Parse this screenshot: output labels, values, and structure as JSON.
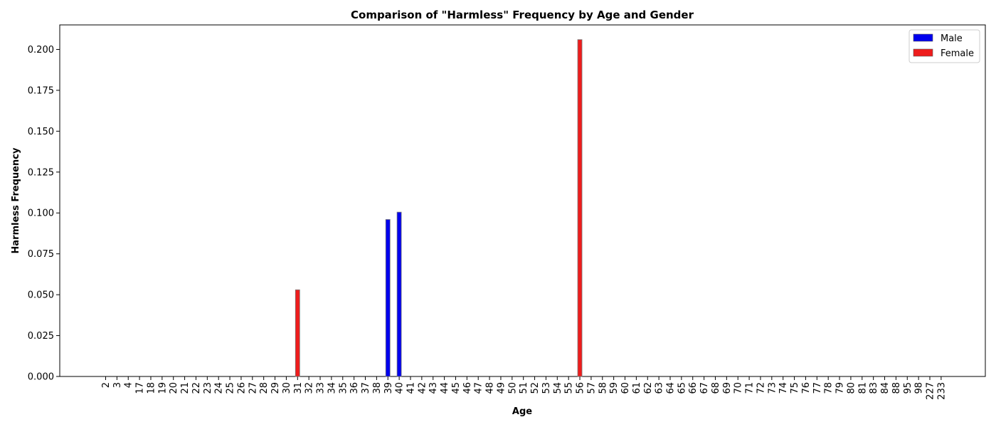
{
  "chart_data": {
    "type": "bar",
    "title": "Comparison of \"Harmless\" Frequency by Age and Gender",
    "xlabel": "Age",
    "ylabel": "Harmless Frequency",
    "categories": [
      "2",
      "3",
      "4",
      "17",
      "18",
      "19",
      "20",
      "21",
      "22",
      "23",
      "24",
      "25",
      "26",
      "27",
      "28",
      "29",
      "30",
      "31",
      "32",
      "33",
      "34",
      "35",
      "36",
      "37",
      "38",
      "39",
      "40",
      "41",
      "42",
      "43",
      "44",
      "45",
      "46",
      "47",
      "48",
      "49",
      "50",
      "51",
      "52",
      "53",
      "54",
      "55",
      "56",
      "57",
      "58",
      "59",
      "60",
      "61",
      "62",
      "63",
      "64",
      "65",
      "66",
      "67",
      "68",
      "69",
      "70",
      "71",
      "72",
      "73",
      "74",
      "75",
      "76",
      "77",
      "78",
      "79",
      "80",
      "81",
      "83",
      "84",
      "88",
      "95",
      "98",
      "227",
      "233"
    ],
    "series": [
      {
        "name": "Male",
        "color": "#0000ee",
        "values": {
          "39": 0.096,
          "40": 0.1005
        }
      },
      {
        "name": "Female",
        "color": "#ee1c1c",
        "values": {
          "31": 0.053,
          "56": 0.206
        }
      }
    ],
    "ylim": [
      0,
      0.215
    ],
    "yticks": [
      "0.000",
      "0.025",
      "0.050",
      "0.075",
      "0.100",
      "0.125",
      "0.150",
      "0.175",
      "0.200"
    ],
    "ytick_values": [
      0,
      0.025,
      0.05,
      0.075,
      0.1,
      0.125,
      0.15,
      0.175,
      0.2
    ],
    "legend_position": "top-right",
    "grid": false
  }
}
